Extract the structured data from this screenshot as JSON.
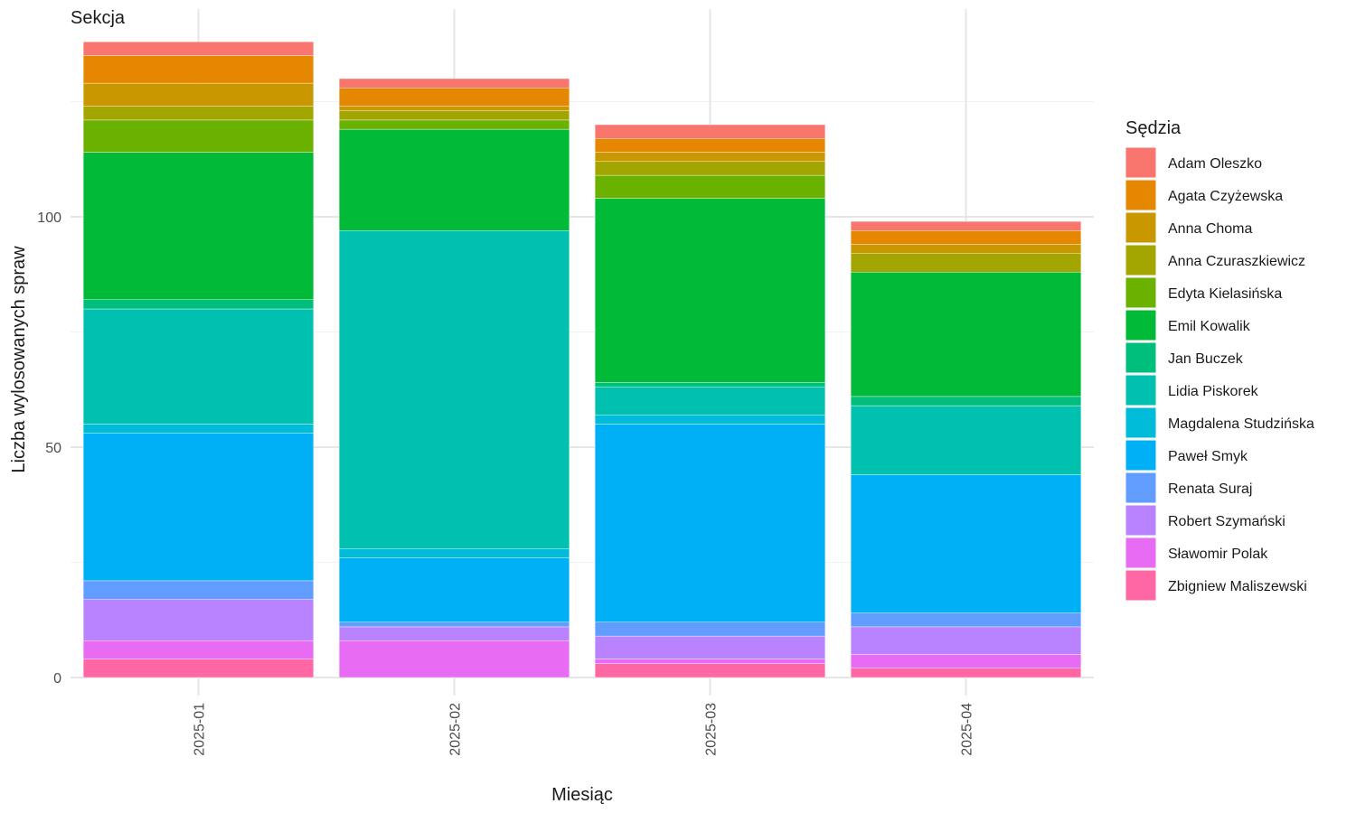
{
  "chart_data": {
    "type": "bar",
    "stacked": true,
    "title": "Sekcja",
    "xlabel": "Miesiąc",
    "ylabel": "Liczba wylosowanych spraw",
    "ylim": [
      -5,
      145
    ],
    "yticks": [
      0,
      50,
      100
    ],
    "grid": true,
    "legend_title": "Sędzia",
    "legend_position": "right",
    "categories": [
      "2025-01",
      "2025-02",
      "2025-03",
      "2025-04"
    ],
    "series": [
      {
        "name": "Adam Oleszko",
        "color": "#F8766D",
        "values": [
          3,
          2,
          3,
          2
        ]
      },
      {
        "name": "Agata Czyżewska",
        "color": "#E58700",
        "values": [
          6,
          4,
          3,
          3
        ]
      },
      {
        "name": "Anna Choma",
        "color": "#C99800",
        "values": [
          5,
          1,
          2,
          2
        ]
      },
      {
        "name": "Anna Czuraszkiewicz",
        "color": "#A3A500",
        "values": [
          3,
          2,
          3,
          4
        ]
      },
      {
        "name": "Edyta Kielasińska",
        "color": "#6BB100",
        "values": [
          7,
          2,
          5,
          0
        ]
      },
      {
        "name": "Emil Kowalik",
        "color": "#00BA38",
        "values": [
          32,
          22,
          40,
          27
        ]
      },
      {
        "name": "Jan Buczek",
        "color": "#00BF7D",
        "values": [
          2,
          0,
          1,
          2
        ]
      },
      {
        "name": "Lidia Piskorek",
        "color": "#00C0AF",
        "values": [
          25,
          69,
          6,
          15
        ]
      },
      {
        "name": "Magdalena Studzińska",
        "color": "#00BCD8",
        "values": [
          2,
          2,
          2,
          0
        ]
      },
      {
        "name": "Paweł Smyk",
        "color": "#00B0F6",
        "values": [
          32,
          14,
          43,
          30
        ]
      },
      {
        "name": "Renata Suraj",
        "color": "#619CFF",
        "values": [
          4,
          1,
          3,
          3
        ]
      },
      {
        "name": "Robert Szymański",
        "color": "#B983FF",
        "values": [
          9,
          3,
          5,
          6
        ]
      },
      {
        "name": "Sławomir Polak",
        "color": "#E76BF3",
        "values": [
          4,
          8,
          1,
          3
        ]
      },
      {
        "name": "Zbigniew Maliszewski",
        "color": "#FF67A4",
        "values": [
          4,
          0,
          3,
          2
        ]
      }
    ]
  }
}
